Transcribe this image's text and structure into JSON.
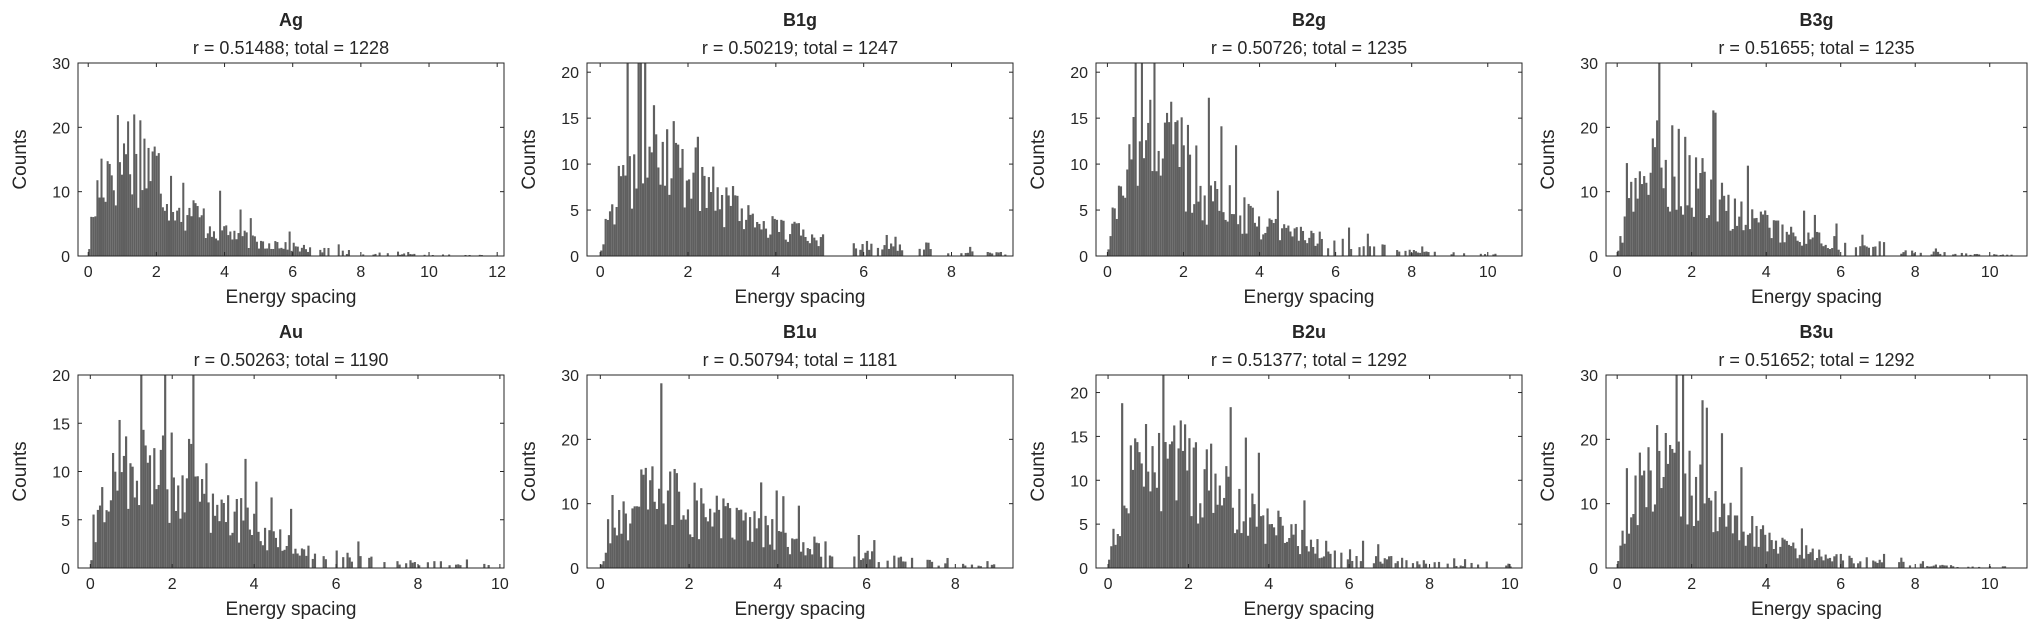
{
  "figure": {
    "layout": "2x4 grid",
    "bar_color": "#5f5f5f"
  },
  "chart_data": [
    {
      "type": "histogram",
      "title": "Ag",
      "subtitle": "r = 0.51488; total = 1228",
      "xlabel": "Energy spacing",
      "ylabel": "Counts",
      "xlim": [
        -0.3,
        12.2
      ],
      "ylim": [
        0,
        30
      ],
      "xticks": [
        0,
        2,
        4,
        6,
        8,
        10,
        12
      ],
      "yticks": [
        0,
        10,
        20,
        30
      ],
      "bin_width": 0.06,
      "envelope": [
        [
          0,
          0
        ],
        [
          0.1,
          5
        ],
        [
          0.4,
          13
        ],
        [
          0.8,
          15
        ],
        [
          1.2,
          17
        ],
        [
          1.6,
          16
        ],
        [
          2.0,
          13
        ],
        [
          2.5,
          10
        ],
        [
          3.0,
          7
        ],
        [
          3.5,
          5
        ],
        [
          4.0,
          4
        ],
        [
          4.5,
          3
        ],
        [
          5.0,
          2
        ],
        [
          5.5,
          2
        ],
        [
          6.0,
          1.5
        ],
        [
          6.5,
          1
        ],
        [
          7.0,
          1
        ],
        [
          7.5,
          0.7
        ],
        [
          8.0,
          0.5
        ],
        [
          9.0,
          0.3
        ],
        [
          10.0,
          0.2
        ],
        [
          11.0,
          0.15
        ],
        [
          12.0,
          0.1
        ]
      ],
      "data_max_x": 11.8
    },
    {
      "type": "histogram",
      "title": "B1g",
      "subtitle": "r = 0.50219; total = 1247",
      "xlabel": "Energy spacing",
      "ylabel": "Counts",
      "xlim": [
        -0.3,
        9.4
      ],
      "ylim": [
        0,
        21
      ],
      "xticks": [
        0,
        2,
        4,
        6,
        8
      ],
      "yticks": [
        0,
        5,
        10,
        15,
        20
      ],
      "bin_width": 0.05,
      "envelope": [
        [
          0,
          0
        ],
        [
          0.1,
          3
        ],
        [
          0.4,
          8
        ],
        [
          0.8,
          12
        ],
        [
          1.1,
          14
        ],
        [
          1.5,
          13
        ],
        [
          2.0,
          10
        ],
        [
          2.5,
          8
        ],
        [
          3.0,
          6
        ],
        [
          3.5,
          4
        ],
        [
          4.0,
          3
        ],
        [
          4.5,
          2.5
        ],
        [
          5.0,
          2
        ],
        [
          5.5,
          1.5
        ],
        [
          6.0,
          1.2
        ],
        [
          6.5,
          1
        ],
        [
          7.0,
          0.8
        ],
        [
          7.5,
          0.6
        ],
        [
          8.0,
          0.5
        ],
        [
          9.0,
          0.3
        ]
      ],
      "data_max_x": 9.2
    },
    {
      "type": "histogram",
      "title": "B2g",
      "subtitle": "r = 0.50726; total = 1235",
      "xlabel": "Energy spacing",
      "ylabel": "Counts",
      "xlim": [
        -0.3,
        10.9
      ],
      "ylim": [
        0,
        21
      ],
      "xticks": [
        0,
        2,
        4,
        6,
        8,
        10
      ],
      "yticks": [
        0,
        5,
        10,
        15,
        20
      ],
      "bin_width": 0.055,
      "envelope": [
        [
          0,
          0
        ],
        [
          0.1,
          3
        ],
        [
          0.4,
          9
        ],
        [
          0.8,
          13
        ],
        [
          1.2,
          14
        ],
        [
          1.6,
          13
        ],
        [
          2.0,
          11
        ],
        [
          2.5,
          8
        ],
        [
          3.0,
          6
        ],
        [
          3.5,
          5
        ],
        [
          4.0,
          4
        ],
        [
          4.5,
          3
        ],
        [
          5.0,
          2.5
        ],
        [
          5.5,
          2
        ],
        [
          6.0,
          1.5
        ],
        [
          6.5,
          1.2
        ],
        [
          7.0,
          1
        ],
        [
          8.0,
          0.5
        ],
        [
          9.0,
          0.3
        ],
        [
          10.0,
          0.2
        ]
      ],
      "data_max_x": 10.2
    },
    {
      "type": "histogram",
      "title": "B3g",
      "subtitle": "r = 0.51655; total = 1235",
      "xlabel": "Energy spacing",
      "ylabel": "Counts",
      "xlim": [
        -0.3,
        11.0
      ],
      "ylim": [
        0,
        30
      ],
      "xticks": [
        0,
        2,
        4,
        6,
        8,
        10
      ],
      "yticks": [
        0,
        10,
        20,
        30
      ],
      "bin_width": 0.058,
      "envelope": [
        [
          0,
          0
        ],
        [
          0.1,
          3
        ],
        [
          0.4,
          9
        ],
        [
          0.8,
          13
        ],
        [
          1.2,
          15
        ],
        [
          1.6,
          14
        ],
        [
          2.0,
          12
        ],
        [
          2.5,
          10
        ],
        [
          3.0,
          8
        ],
        [
          3.5,
          6
        ],
        [
          4.0,
          5
        ],
        [
          4.5,
          4
        ],
        [
          5.0,
          3
        ],
        [
          5.5,
          2.5
        ],
        [
          6.0,
          2
        ],
        [
          6.5,
          1.5
        ],
        [
          7.0,
          1
        ],
        [
          8.0,
          0.6
        ],
        [
          9.0,
          0.4
        ],
        [
          10.0,
          0.2
        ]
      ],
      "data_max_x": 10.6
    },
    {
      "type": "histogram",
      "title": "Au",
      "subtitle": "r = 0.50263; total = 1190",
      "xlabel": "Energy spacing",
      "ylabel": "Counts",
      "xlim": [
        -0.3,
        10.1
      ],
      "ylim": [
        0,
        20
      ],
      "xticks": [
        0,
        2,
        4,
        6,
        8,
        10
      ],
      "yticks": [
        0,
        5,
        10,
        15,
        20
      ],
      "bin_width": 0.053,
      "envelope": [
        [
          0,
          0
        ],
        [
          0.1,
          3
        ],
        [
          0.4,
          8
        ],
        [
          0.8,
          12
        ],
        [
          1.2,
          12
        ],
        [
          1.6,
          11
        ],
        [
          2.0,
          10
        ],
        [
          2.5,
          9
        ],
        [
          3.0,
          7
        ],
        [
          3.5,
          6
        ],
        [
          4.0,
          4
        ],
        [
          4.5,
          3
        ],
        [
          5.0,
          2.5
        ],
        [
          5.5,
          2
        ],
        [
          6.0,
          1.5
        ],
        [
          6.5,
          1.2
        ],
        [
          7.0,
          1
        ],
        [
          8.0,
          0.6
        ],
        [
          9.0,
          0.4
        ],
        [
          9.7,
          0.3
        ]
      ],
      "data_max_x": 9.7
    },
    {
      "type": "histogram",
      "title": "B1u",
      "subtitle": "r = 0.50794; total = 1181",
      "xlabel": "Energy spacing",
      "ylabel": "Counts",
      "xlim": [
        -0.3,
        9.3
      ],
      "ylim": [
        0,
        30
      ],
      "xticks": [
        0,
        2,
        4,
        6,
        8
      ],
      "yticks": [
        0,
        10,
        20,
        30
      ],
      "bin_width": 0.05,
      "envelope": [
        [
          0,
          0
        ],
        [
          0.1,
          2
        ],
        [
          0.4,
          7
        ],
        [
          0.8,
          10
        ],
        [
          1.2,
          12
        ],
        [
          1.6,
          12
        ],
        [
          2.0,
          10
        ],
        [
          2.5,
          8
        ],
        [
          3.0,
          7
        ],
        [
          3.5,
          6
        ],
        [
          4.0,
          5
        ],
        [
          4.5,
          4
        ],
        [
          5.0,
          3
        ],
        [
          5.5,
          2.5
        ],
        [
          6.0,
          2
        ],
        [
          6.5,
          1.5
        ],
        [
          7.0,
          1.2
        ],
        [
          7.5,
          0.8
        ],
        [
          8.0,
          0.6
        ],
        [
          9.0,
          0.4
        ]
      ],
      "data_max_x": 9.0
    },
    {
      "type": "histogram",
      "title": "B2u",
      "subtitle": "r = 0.51377; total = 1292",
      "xlabel": "Energy spacing",
      "ylabel": "Counts",
      "xlim": [
        -0.3,
        10.3
      ],
      "ylim": [
        0,
        22
      ],
      "xticks": [
        0,
        2,
        4,
        6,
        8,
        10
      ],
      "yticks": [
        0,
        5,
        10,
        15,
        20
      ],
      "bin_width": 0.054,
      "envelope": [
        [
          0,
          0
        ],
        [
          0.1,
          3
        ],
        [
          0.4,
          9
        ],
        [
          0.8,
          12
        ],
        [
          1.2,
          13
        ],
        [
          1.6,
          13
        ],
        [
          2.0,
          12
        ],
        [
          2.5,
          10
        ],
        [
          3.0,
          8
        ],
        [
          3.5,
          6
        ],
        [
          4.0,
          5
        ],
        [
          4.5,
          4
        ],
        [
          5.0,
          3
        ],
        [
          5.5,
          2
        ],
        [
          6.0,
          1.5
        ],
        [
          7.0,
          1
        ],
        [
          8.0,
          0.6
        ],
        [
          9.0,
          0.4
        ],
        [
          10.0,
          0.2
        ]
      ],
      "data_max_x": 10.0
    },
    {
      "type": "histogram",
      "title": "B3u",
      "subtitle": "r = 0.51652; total = 1292",
      "xlabel": "Energy spacing",
      "ylabel": "Counts",
      "xlim": [
        -0.3,
        11.0
      ],
      "ylim": [
        0,
        30
      ],
      "xticks": [
        0,
        2,
        4,
        6,
        8,
        10
      ],
      "yticks": [
        0,
        10,
        20,
        30
      ],
      "bin_width": 0.058,
      "envelope": [
        [
          0,
          0
        ],
        [
          0.1,
          3
        ],
        [
          0.4,
          10
        ],
        [
          0.8,
          15
        ],
        [
          1.2,
          16
        ],
        [
          1.6,
          15
        ],
        [
          2.0,
          13
        ],
        [
          2.5,
          10
        ],
        [
          3.0,
          8
        ],
        [
          3.5,
          6
        ],
        [
          4.0,
          5
        ],
        [
          4.5,
          3.5
        ],
        [
          5.0,
          2.5
        ],
        [
          5.5,
          2
        ],
        [
          6.0,
          1.5
        ],
        [
          7.0,
          1
        ],
        [
          8.0,
          0.5
        ],
        [
          9.0,
          0.3
        ],
        [
          10.0,
          0.2
        ]
      ],
      "data_max_x": 10.5
    }
  ]
}
